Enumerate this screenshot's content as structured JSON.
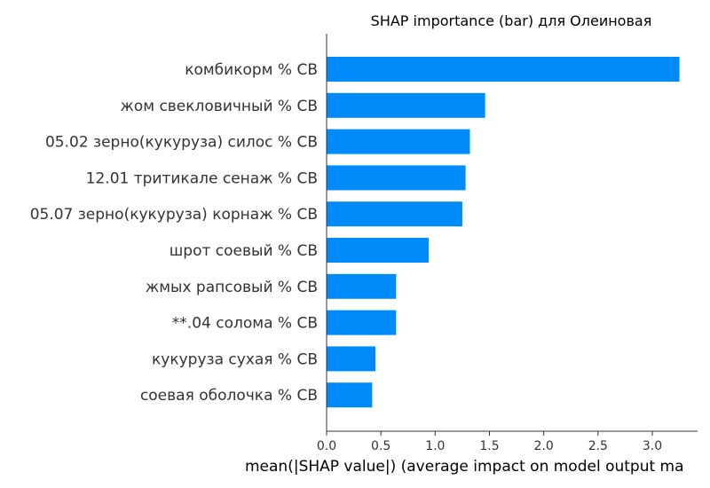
{
  "chart_data": {
    "type": "bar",
    "orientation": "horizontal",
    "title": "SHAP importance (bar) для Олеиновая",
    "xlabel": "mean(|SHAP value|) (average impact on model output ma",
    "ylabel": "",
    "categories": [
      "комбикорм % СВ",
      "жом свекловичный % СВ",
      "05.02 зерно(кукуруза) силос % СВ",
      "12.01 тритикале сенаж % СВ",
      "05.07 зерно(кукуруза) корнаж % СВ",
      "шрот соевый % СВ",
      "жмых рапсовый % СВ",
      "**.04 солома % СВ",
      "кукуруза сухая % СВ",
      "соевая оболочка % СВ"
    ],
    "values": [
      3.25,
      1.46,
      1.32,
      1.28,
      1.25,
      0.94,
      0.64,
      0.64,
      0.45,
      0.42
    ],
    "xlim": [
      0,
      3.42
    ],
    "xticks": [
      0.0,
      0.5,
      1.0,
      1.5,
      2.0,
      2.5,
      3.0
    ],
    "xtick_labels": [
      "0.0",
      "0.5",
      "1.0",
      "1.5",
      "2.0",
      "2.5",
      "3.0"
    ],
    "grid": false,
    "legend": "none",
    "bar_color": "#008bfb",
    "axis_color": "#333333"
  }
}
